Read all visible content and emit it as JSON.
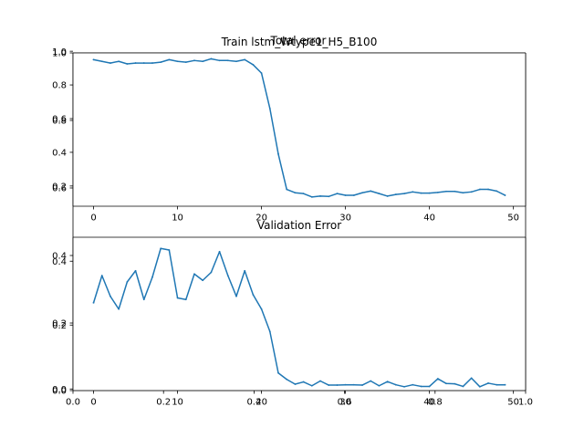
{
  "colors": {
    "line": "#1f77b4",
    "axis": "#000000",
    "background": "#ffffff"
  },
  "chart_data": [
    {
      "type": "axes-overlay",
      "title": "Total error",
      "xlim": [
        0,
        1
      ],
      "ylim": [
        0,
        1
      ],
      "x_ticks": [
        0.0,
        0.2,
        0.4,
        0.6,
        0.8,
        1.0
      ],
      "x_tick_labels": [
        "0.0",
        "0.2",
        "0.4",
        "0.6",
        "0.8",
        "1.0"
      ],
      "y_ticks": [
        0.0,
        0.2,
        0.4,
        0.6,
        0.8,
        1.0
      ],
      "y_tick_labels": [
        "0.0",
        "0.2",
        "0.4",
        "0.6",
        "0.8",
        "1.0"
      ],
      "grid": false
    },
    {
      "type": "line",
      "title": "Train lstm_Wtype1_H5_B100",
      "xlim": [
        -2.45,
        51.45
      ],
      "ylim": [
        0.08,
        0.99
      ],
      "x_ticks": [
        0,
        10,
        20,
        30,
        40,
        50
      ],
      "x_tick_labels": [
        "0",
        "10",
        "20",
        "30",
        "40",
        "50"
      ],
      "y_ticks": [
        0.2,
        0.4,
        0.6,
        0.8,
        1.0
      ],
      "y_tick_labels": [
        "0.2",
        "0.4",
        "0.6",
        "0.8",
        "1.0"
      ],
      "grid": false,
      "x": [
        0,
        1,
        2,
        3,
        4,
        5,
        6,
        7,
        8,
        9,
        10,
        11,
        12,
        13,
        14,
        15,
        16,
        17,
        18,
        19,
        20,
        21,
        22,
        23,
        24,
        25,
        26,
        27,
        28,
        29,
        30,
        31,
        32,
        33,
        34,
        35,
        36,
        37,
        38,
        39,
        40,
        41,
        42,
        43,
        44,
        45,
        46,
        47,
        48,
        49
      ],
      "values": [
        0.95,
        0.94,
        0.93,
        0.94,
        0.925,
        0.93,
        0.93,
        0.93,
        0.935,
        0.95,
        0.94,
        0.935,
        0.945,
        0.94,
        0.955,
        0.945,
        0.945,
        0.94,
        0.95,
        0.92,
        0.87,
        0.66,
        0.39,
        0.18,
        0.16,
        0.155,
        0.135,
        0.14,
        0.138,
        0.155,
        0.145,
        0.145,
        0.16,
        0.17,
        0.155,
        0.14,
        0.15,
        0.155,
        0.165,
        0.158,
        0.158,
        0.162,
        0.168,
        0.168,
        0.16,
        0.165,
        0.18,
        0.18,
        0.17,
        0.145
      ]
    },
    {
      "type": "line",
      "title": "Validation Error",
      "xlim": [
        -2.45,
        51.45
      ],
      "ylim": [
        -0.005,
        0.475
      ],
      "x_ticks": [
        0,
        10,
        20,
        30,
        40,
        50
      ],
      "x_tick_labels": [
        "0",
        "10",
        "20",
        "30",
        "40",
        "50"
      ],
      "y_ticks": [
        0.0,
        0.2,
        0.4
      ],
      "y_tick_labels": [
        "0.0",
        "0.2",
        "0.4"
      ],
      "grid": false,
      "x": [
        0,
        1,
        2,
        3,
        4,
        5,
        6,
        7,
        8,
        9,
        10,
        11,
        12,
        13,
        14,
        15,
        16,
        17,
        18,
        19,
        20,
        21,
        22,
        23,
        24,
        25,
        26,
        27,
        28,
        29,
        30,
        31,
        32,
        33,
        34,
        35,
        36,
        37,
        38,
        39,
        40,
        41,
        42,
        43,
        44,
        45,
        46,
        47,
        48,
        49
      ],
      "values": [
        0.27,
        0.355,
        0.29,
        0.25,
        0.335,
        0.37,
        0.28,
        0.35,
        0.44,
        0.435,
        0.285,
        0.28,
        0.36,
        0.34,
        0.365,
        0.43,
        0.355,
        0.29,
        0.37,
        0.295,
        0.25,
        0.18,
        0.05,
        0.03,
        0.015,
        0.022,
        0.01,
        0.025,
        0.012,
        0.012,
        0.013,
        0.013,
        0.012,
        0.025,
        0.01,
        0.023,
        0.013,
        0.007,
        0.013,
        0.008,
        0.008,
        0.032,
        0.017,
        0.016,
        0.008,
        0.034,
        0.007,
        0.018,
        0.013,
        0.013
      ]
    }
  ]
}
